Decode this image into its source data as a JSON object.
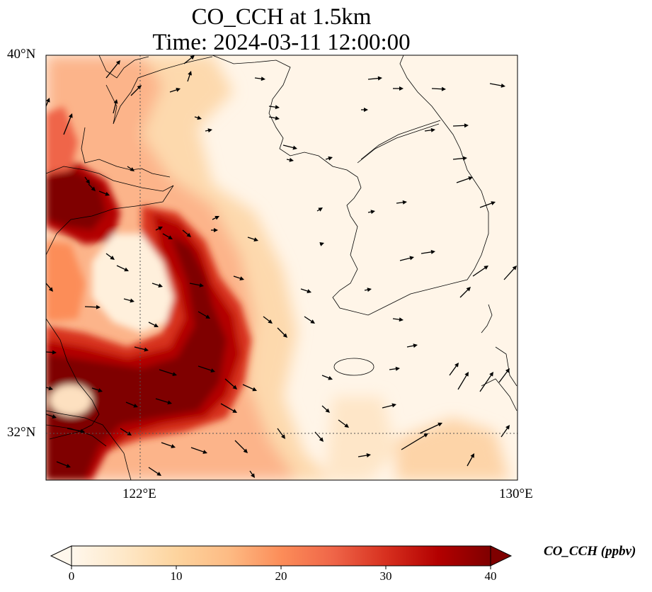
{
  "title": {
    "line1": "CO_CCH at 1.5km",
    "line2": "Time: 2024-03-11 12:00:00"
  },
  "map": {
    "lat_range": [
      31,
      40
    ],
    "lon_range": [
      120,
      130
    ],
    "lat_labels": [
      "40°N",
      "32°N"
    ],
    "lon_labels": [
      "122°E",
      "130°E"
    ],
    "gridlines": {
      "lat": 32,
      "lon": 122,
      "style": "dotted"
    }
  },
  "colorbar": {
    "label": "CO_CCH (ppbv)",
    "ticks": [
      "0",
      "10",
      "20",
      "30",
      "40"
    ],
    "range": [
      0,
      40
    ],
    "extend": "both",
    "colormap": [
      "#fff7ec",
      "#fee8c8",
      "#fdd49e",
      "#fdbb84",
      "#fc8d59",
      "#ef6548",
      "#d7301f",
      "#b30000",
      "#7f0000"
    ]
  },
  "colors": {
    "background": "#fff5e8",
    "coastline": "#000000",
    "wind_vector": "#000000"
  }
}
